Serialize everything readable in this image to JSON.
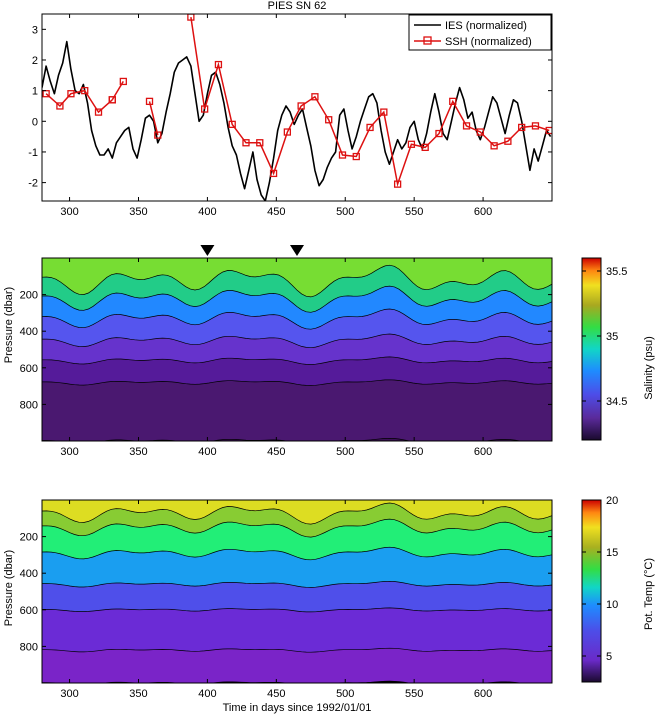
{
  "chart_data": [
    {
      "type": "line",
      "title": "PIES SN 62",
      "xlabel": "",
      "ylabel": "",
      "xlim": [
        280,
        650
      ],
      "ylim": [
        -2.6,
        3.5
      ],
      "xticks": [
        300,
        350,
        400,
        450,
        500,
        550,
        600
      ],
      "yticks": [
        -2,
        -1,
        0,
        1,
        2,
        3
      ],
      "legend_position": "top-right",
      "series": [
        {
          "name": "IES (normalized)",
          "color": "#000000",
          "marker": "none",
          "x": [
            280,
            283,
            286,
            289,
            292,
            295,
            298,
            301,
            304,
            307,
            310,
            313,
            316,
            319,
            322,
            325,
            328,
            331,
            334,
            337,
            340,
            343,
            346,
            349,
            352,
            355,
            358,
            361,
            364,
            367,
            370,
            373,
            376,
            379,
            382,
            385,
            388,
            391,
            394,
            397,
            400,
            403,
            406,
            409,
            412,
            415,
            418,
            421,
            424,
            427,
            430,
            433,
            436,
            439,
            442,
            445,
            448,
            451,
            454,
            457,
            460,
            463,
            466,
            469,
            472,
            475,
            478,
            481,
            484,
            487,
            490,
            493,
            496,
            499,
            502,
            505,
            508,
            511,
            514,
            517,
            520,
            523,
            526,
            529,
            532,
            535,
            538,
            541,
            544,
            547,
            550,
            553,
            556,
            559,
            562,
            565,
            568,
            571,
            574,
            577,
            580,
            583,
            586,
            589,
            592,
            595,
            598,
            601,
            604,
            607,
            610,
            613,
            616,
            619,
            622,
            625,
            628,
            631,
            634,
            637,
            640,
            643,
            646,
            649
          ],
          "y": [
            1.1,
            1.8,
            1.3,
            0.9,
            1.5,
            1.9,
            2.6,
            1.7,
            1.0,
            0.9,
            1.2,
            0.6,
            -0.3,
            -0.8,
            -1.1,
            -1.1,
            -0.9,
            -1.2,
            -0.7,
            -0.5,
            -0.3,
            -0.2,
            -0.9,
            -1.2,
            -0.6,
            0.1,
            0.2,
            0.0,
            -0.7,
            -0.4,
            0.3,
            0.9,
            1.6,
            1.9,
            2.0,
            2.1,
            1.8,
            0.9,
            0.0,
            0.2,
            0.9,
            1.5,
            1.6,
            1.2,
            0.6,
            -0.2,
            -0.8,
            -1.1,
            -1.7,
            -2.2,
            -1.6,
            -1.0,
            -1.9,
            -2.4,
            -2.6,
            -2.0,
            -1.2,
            -0.3,
            0.2,
            0.5,
            0.3,
            -0.1,
            0.2,
            0.4,
            -0.2,
            -0.8,
            -1.6,
            -2.1,
            -1.9,
            -1.5,
            -1.2,
            -1.0,
            0.2,
            0.4,
            -0.3,
            -0.9,
            -0.5,
            0.0,
            0.4,
            0.8,
            0.9,
            0.6,
            -0.3,
            -1.0,
            -1.4,
            -1.0,
            -0.6,
            -0.9,
            -0.7,
            -0.2,
            0.0,
            -0.6,
            -0.9,
            -0.4,
            0.3,
            0.9,
            0.3,
            -0.4,
            -0.6,
            0.0,
            0.6,
            1.1,
            0.7,
            0.1,
            0.3,
            -0.3,
            -0.6,
            -0.2,
            0.3,
            0.8,
            0.6,
            0.1,
            -0.4,
            0.2,
            0.7,
            0.6,
            0.0,
            -0.8,
            -1.6,
            -0.9,
            -1.3,
            -0.8,
            -0.3,
            -0.5
          ]
        },
        {
          "name": "SSH (normalized)",
          "color": "#dd1111",
          "marker": "square",
          "segments": [
            {
              "x": [
                283,
                293,
                301,
                311,
                321,
                331
              ],
              "y": [
                0.9,
                0.5,
                0.9,
                1.0,
                0.3,
                0.7
              ]
            },
            {
              "x": [
                331,
                339
              ],
              "y": [
                0.7,
                1.3
              ]
            },
            {
              "x": [
                358,
                364
              ],
              "y": [
                0.65,
                -0.45
              ]
            },
            {
              "x": [
                388,
                398,
                408,
                418,
                428,
                438,
                448,
                458,
                468,
                478,
                488,
                498,
                508,
                518,
                528,
                538,
                548,
                558,
                568,
                578,
                588,
                598,
                608,
                618,
                628,
                638,
                648
              ],
              "y": [
                3.4,
                0.4,
                1.85,
                -0.1,
                -0.7,
                -0.7,
                -1.7,
                -0.35,
                0.5,
                0.8,
                0.05,
                -1.1,
                -1.15,
                -0.2,
                0.3,
                -2.05,
                -0.75,
                -0.85,
                -0.4,
                0.65,
                -0.15,
                -0.35,
                -0.8,
                -0.65,
                -0.2,
                -0.15,
                -0.3
              ]
            }
          ]
        }
      ]
    },
    {
      "type": "heatmap",
      "title": "",
      "xlabel": "",
      "ylabel": "Pressure (dbar)",
      "xlim": [
        280,
        650
      ],
      "ylim": [
        0,
        1000
      ],
      "xticks": [
        300,
        350,
        400,
        450,
        500,
        550,
        600
      ],
      "yticks": [
        200,
        400,
        600,
        800
      ],
      "markers_x": [
        400,
        465
      ],
      "colorbar": {
        "label": "Salinity (psu)",
        "ticks": [
          34.5,
          35,
          35.5
        ],
        "range": [
          34.2,
          35.6
        ]
      },
      "levels": [
        {
          "bottom": 0,
          "color": "#77dd33"
        },
        {
          "bottom": 120,
          "color": "#22cc88"
        },
        {
          "bottom": 220,
          "color": "#2288ff"
        },
        {
          "bottom": 330,
          "color": "#5555ee"
        },
        {
          "bottom": 450,
          "color": "#6633cc"
        },
        {
          "bottom": 560,
          "color": "#551b9a"
        },
        {
          "bottom": 680,
          "color": "#4a1870"
        },
        {
          "bottom": 1000,
          "color": "#3a1055"
        }
      ]
    },
    {
      "type": "heatmap",
      "title": "",
      "xlabel": "Time in days since 1992/01/01",
      "ylabel": "Pressure (dbar)",
      "xlim": [
        280,
        650
      ],
      "ylim": [
        0,
        1000
      ],
      "xticks": [
        300,
        350,
        400,
        450,
        500,
        550,
        600
      ],
      "yticks": [
        200,
        400,
        600,
        800
      ],
      "colorbar": {
        "label": "Pot. Temp (°C)",
        "ticks": [
          5,
          10,
          15,
          20
        ],
        "range": [
          2.5,
          20
        ]
      },
      "levels": [
        {
          "bottom": 0,
          "color": "#dddd22"
        },
        {
          "bottom": 70,
          "color": "#88cc33"
        },
        {
          "bottom": 150,
          "color": "#22ee77"
        },
        {
          "bottom": 290,
          "color": "#1a9ef0"
        },
        {
          "bottom": 460,
          "color": "#4f4fea"
        },
        {
          "bottom": 600,
          "color": "#6b2bd6"
        },
        {
          "bottom": 820,
          "color": "#7a24c8"
        },
        {
          "bottom": 1000,
          "color": "#000000"
        }
      ]
    }
  ]
}
